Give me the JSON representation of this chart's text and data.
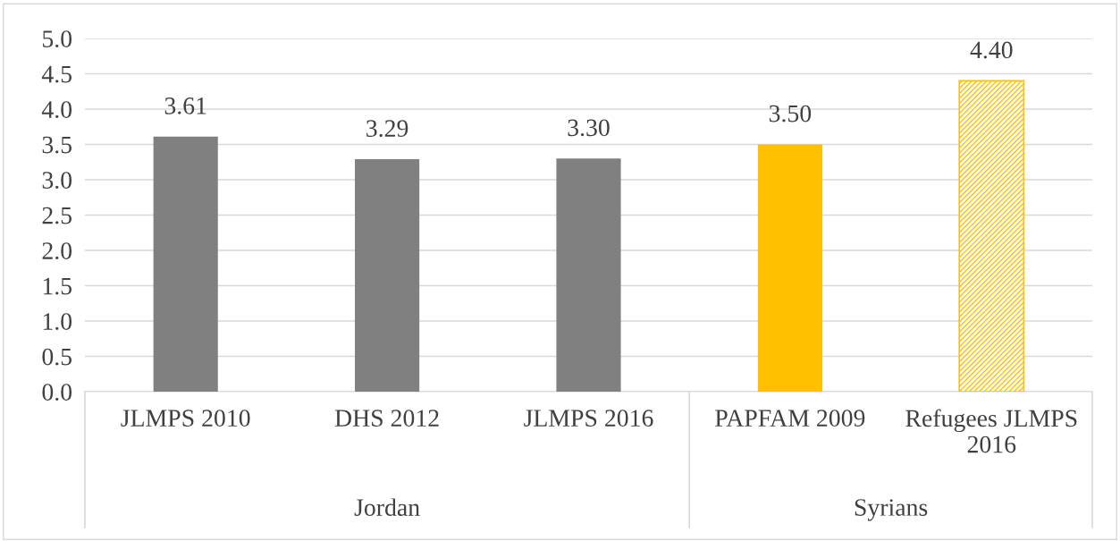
{
  "chart_data": {
    "type": "bar",
    "categories": [
      "JLMPS 2010",
      "DHS 2012",
      "JLMPS 2016",
      "PAPFAM 2009",
      "Refugees JLMPS\n2016"
    ],
    "values": [
      3.61,
      3.29,
      3.3,
      3.5,
      4.4
    ],
    "value_labels": [
      "3.61",
      "3.29",
      "3.30",
      "3.50",
      "4.40"
    ],
    "colors": [
      "#808080",
      "#808080",
      "#808080",
      "#ffc000",
      "#ffc000"
    ],
    "ylim": [
      0,
      5
    ],
    "yticks": [
      {
        "value": 0,
        "label": "0.0"
      },
      {
        "value": 0.5,
        "label": "0.5"
      },
      {
        "value": 1,
        "label": "1.0"
      },
      {
        "value": 1.5,
        "label": "1.5"
      },
      {
        "value": 2,
        "label": "2.0"
      },
      {
        "value": 2.5,
        "label": "2.5"
      },
      {
        "value": 3,
        "label": "3.0"
      },
      {
        "value": 3.5,
        "label": "3.5"
      },
      {
        "value": 4,
        "label": "4.0"
      },
      {
        "value": 4.5,
        "label": "4.5"
      },
      {
        "value": 5,
        "label": "5.0"
      }
    ],
    "grid": "y",
    "annotations": [
      "Jordan",
      "Syrians"
    ]
  }
}
